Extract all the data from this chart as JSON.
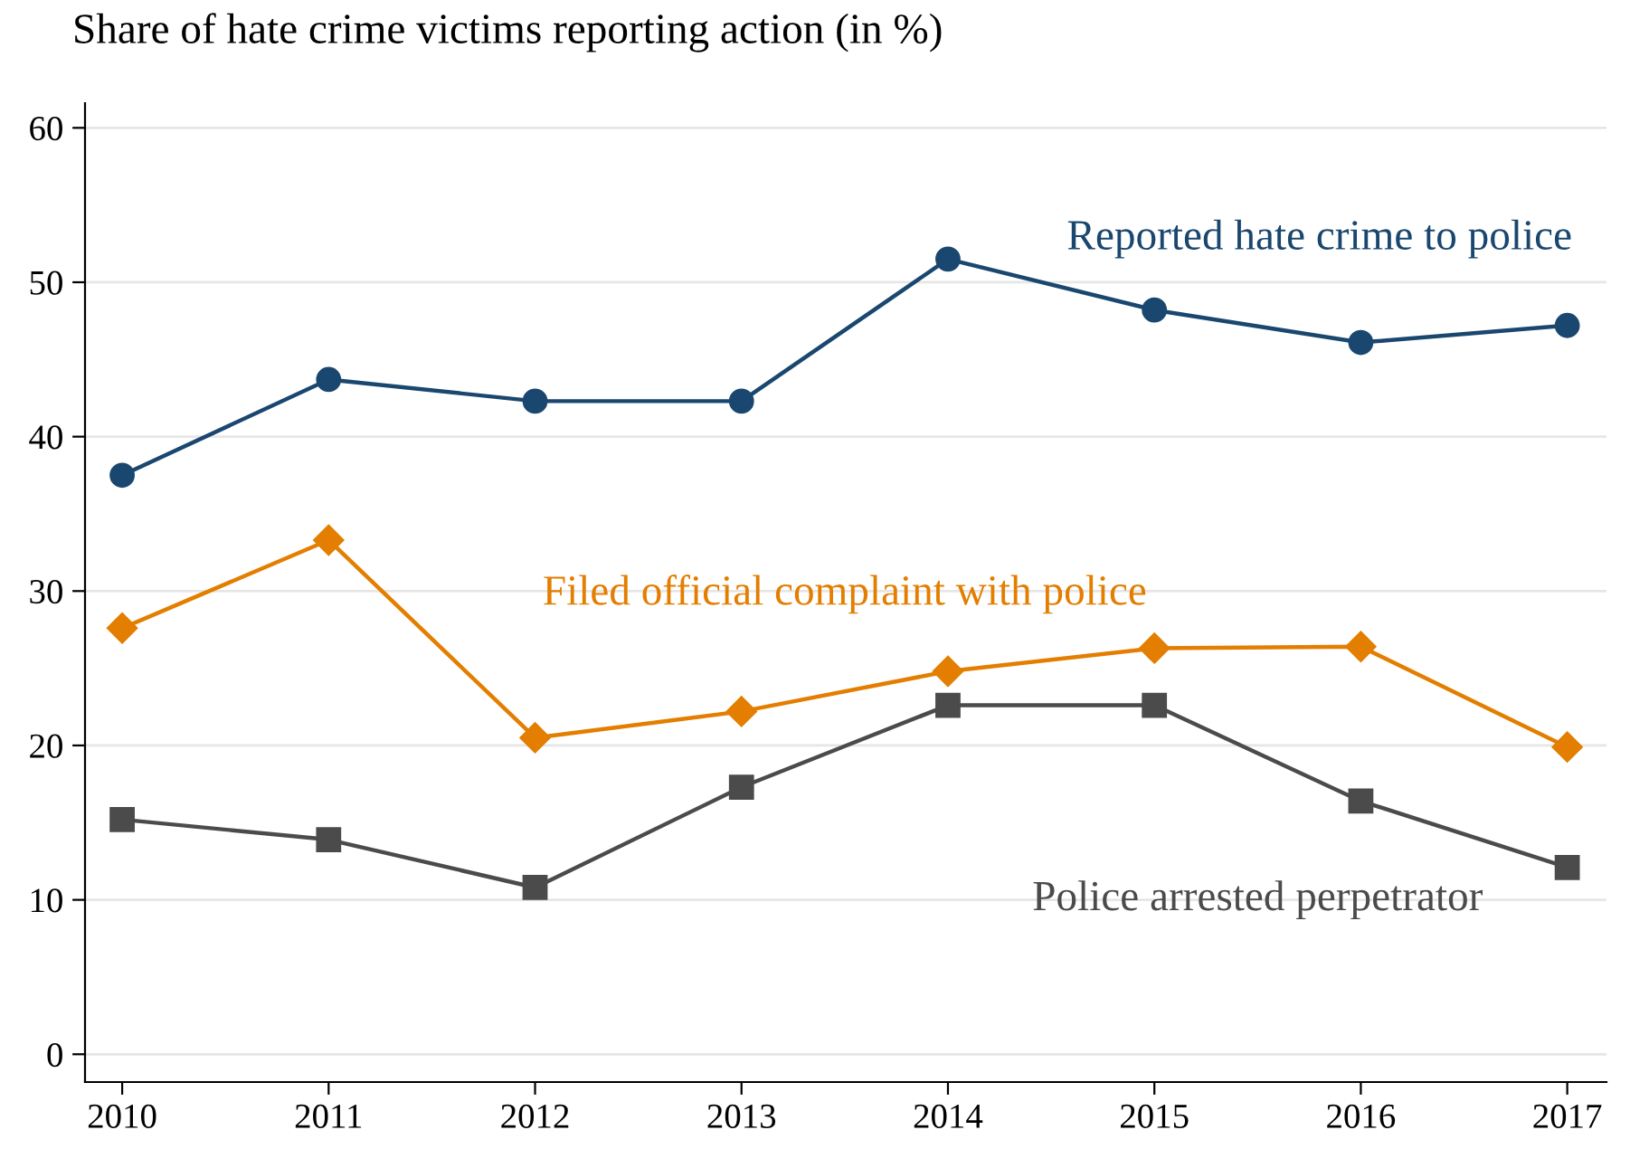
{
  "chart_data": {
    "type": "line",
    "title": "Share of hate crime victims reporting action (in %)",
    "x": [
      2010,
      2011,
      2012,
      2013,
      2014,
      2015,
      2016,
      2017
    ],
    "series": [
      {
        "name": "Reported hate crime to police",
        "color": "#1a476f",
        "marker": "circle",
        "values": [
          37.5,
          43.7,
          42.3,
          42.3,
          51.5,
          48.2,
          46.1,
          47.2
        ]
      },
      {
        "name": "Filed official complaint with police",
        "color": "#e37e00",
        "marker": "diamond",
        "values": [
          27.6,
          33.3,
          20.5,
          22.2,
          24.8,
          26.3,
          26.4,
          19.9
        ]
      },
      {
        "name": "Police arrested perpetrator",
        "color": "#4b4b4b",
        "marker": "square",
        "values": [
          15.2,
          13.9,
          10.8,
          17.3,
          22.6,
          22.6,
          16.4,
          12.1
        ]
      }
    ],
    "xlim": [
      2009.82,
      2017.19
    ],
    "xticks": [
      2010,
      2011,
      2012,
      2013,
      2014,
      2015,
      2016,
      2017
    ],
    "ylim": [
      -1.8,
      61.6
    ],
    "yticks": [
      0,
      10,
      20,
      30,
      40,
      50,
      60
    ],
    "grid": "y",
    "legend": false,
    "line_style": "solid"
  }
}
